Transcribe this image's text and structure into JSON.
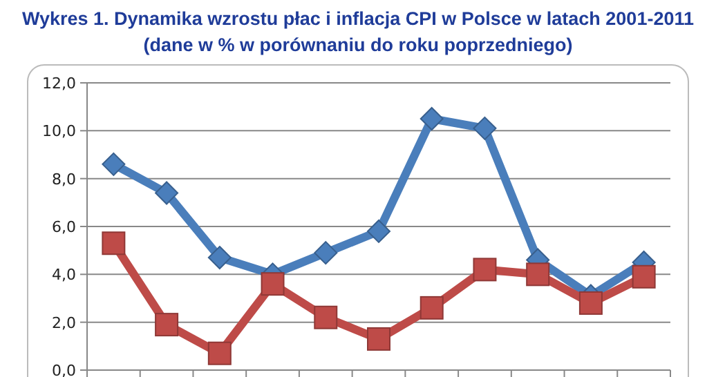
{
  "chart_data": {
    "type": "line",
    "title": "Wykres 1. Dynamika wzrostu płac i inflacja CPI w Polsce w latach 2001-2011",
    "subtitle": "(dane w % w porównaniu do roku poprzedniego)",
    "categories": [
      null,
      null,
      null,
      null,
      null,
      null,
      null,
      null,
      null,
      null,
      null
    ],
    "series": [
      {
        "color": "#4a7ebb",
        "marker": "diamond",
        "values": [
          8.6,
          7.4,
          4.7,
          4.0,
          4.9,
          5.8,
          10.5,
          10.1,
          4.6,
          3.1,
          4.5
        ]
      },
      {
        "color": "#be4b48",
        "marker": "square",
        "values": [
          5.3,
          1.9,
          0.7,
          3.6,
          2.2,
          1.3,
          2.6,
          4.2,
          4.0,
          2.8,
          3.9
        ]
      }
    ],
    "ylim": [
      0,
      12
    ],
    "yticks": [
      {
        "value": 0,
        "label": "0,0"
      },
      {
        "value": 2,
        "label": "2,0"
      },
      {
        "value": 4,
        "label": "4,0"
      },
      {
        "value": 6,
        "label": "6,0"
      },
      {
        "value": 8,
        "label": "8,0"
      },
      {
        "value": 10,
        "label": "10,0"
      },
      {
        "value": 12,
        "label": "12,0"
      }
    ],
    "grid": "y"
  }
}
